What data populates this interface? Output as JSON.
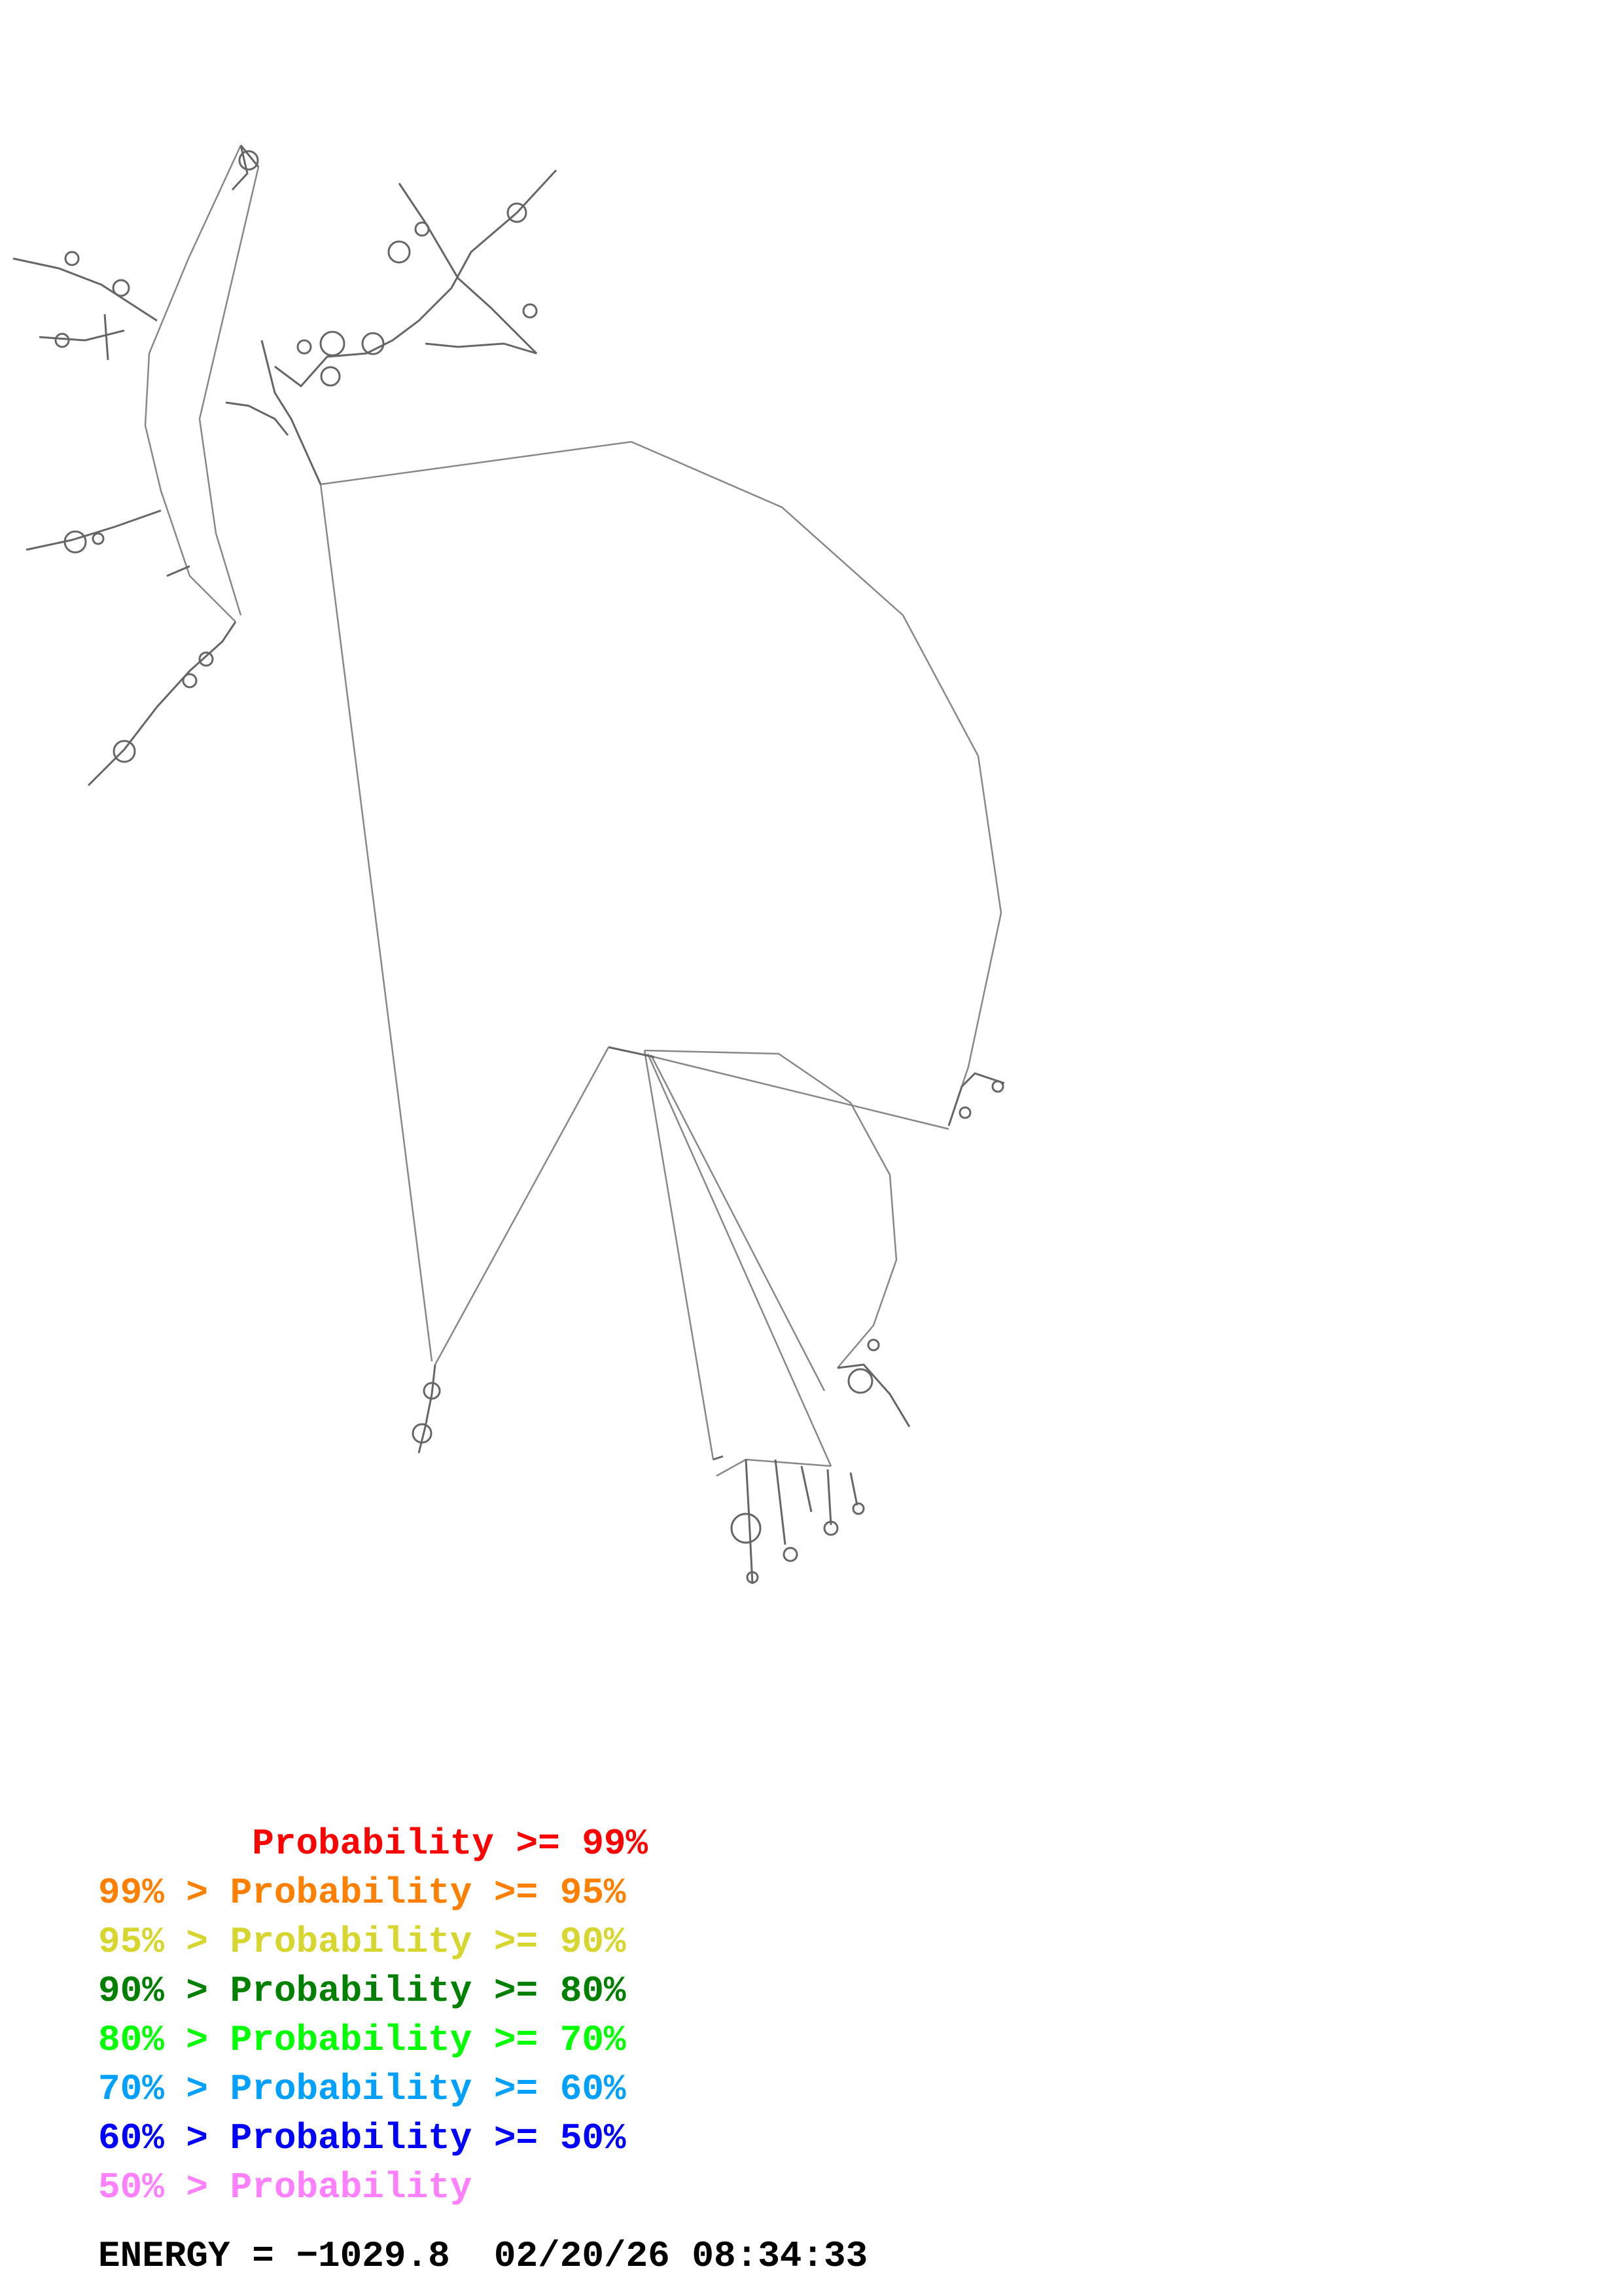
{
  "legend": {
    "rows": [
      {
        "text": "       Probability >= 99%",
        "color": "#ff0000"
      },
      {
        "text": "99% > Probability >= 95%",
        "color": "#ff8000"
      },
      {
        "text": "95% > Probability >= 90%",
        "color": "#d6d62e"
      },
      {
        "text": "90% > Probability >= 80%",
        "color": "#008000"
      },
      {
        "text": "80% > Probability >= 70%",
        "color": "#00ff00"
      },
      {
        "text": "70% > Probability >= 60%",
        "color": "#00a0ff"
      },
      {
        "text": "60% > Probability >= 50%",
        "color": "#0000ff"
      },
      {
        "text": "50% > Probability",
        "color": "#ff80ff"
      }
    ]
  },
  "footer": {
    "energy_label": "ENERGY = ",
    "energy_value": "−1029.8",
    "timestamp": "02/20/26 08:34:33"
  },
  "colors": {
    "backbone": "#888888",
    "base": "#555555",
    "text": "#000000"
  }
}
